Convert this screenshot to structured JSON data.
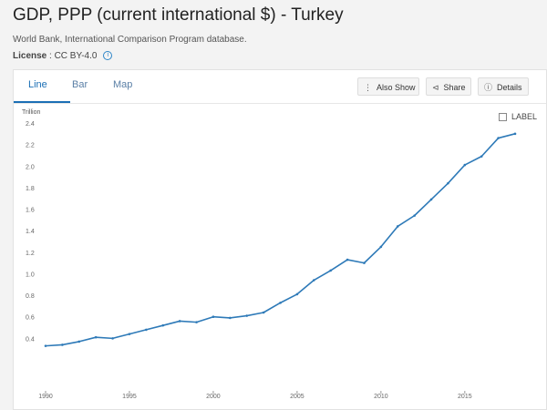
{
  "page": {
    "title": "GDP, PPP (current international $) - Turkey",
    "source": "World Bank, International Comparison Program database.",
    "license_label": "License",
    "license_value": ": CC BY-4.0"
  },
  "tabs": [
    {
      "label": "Line",
      "active": true
    },
    {
      "label": "Bar",
      "active": false
    },
    {
      "label": "Map",
      "active": false
    }
  ],
  "toolbar": {
    "also_show": "Also Show",
    "share": "Share",
    "details": "Details"
  },
  "label_toggle": "LABEL",
  "icons": [
    "info-icon",
    "more-vertical-icon",
    "share-icon",
    "info-circle-icon",
    "checkbox-icon"
  ],
  "colors": {
    "accent": "#1b6fb5",
    "line": "#2e7ab8"
  },
  "chart_data": {
    "type": "line",
    "title": "",
    "ylabel": "Trillion",
    "xlabel": "",
    "x": [
      1990,
      1991,
      1992,
      1993,
      1994,
      1995,
      1996,
      1997,
      1998,
      1999,
      2000,
      2001,
      2002,
      2003,
      2004,
      2005,
      2006,
      2007,
      2008,
      2009,
      2010,
      2011,
      2012,
      2013,
      2014,
      2015,
      2016,
      2017,
      2018
    ],
    "series": [
      {
        "name": "",
        "values": [
          0.33,
          0.34,
          0.37,
          0.41,
          0.4,
          0.44,
          0.48,
          0.52,
          0.56,
          0.55,
          0.6,
          0.59,
          0.61,
          0.64,
          0.73,
          0.81,
          0.94,
          1.03,
          1.13,
          1.1,
          1.25,
          1.44,
          1.54,
          1.69,
          1.84,
          2.01,
          2.09,
          2.26,
          2.3
        ]
      }
    ],
    "ylim": [
      0.2,
      2.4
    ],
    "y_ticks": [
      "0.4",
      "0.6",
      "0.8",
      "1.0",
      "1.2",
      "1.4",
      "1.6",
      "1.8",
      "2.0",
      "2.2",
      "2.4"
    ],
    "x_ticks": [
      "1990",
      "1995",
      "2000",
      "2005",
      "2010",
      "2015"
    ],
    "grid": false
  }
}
